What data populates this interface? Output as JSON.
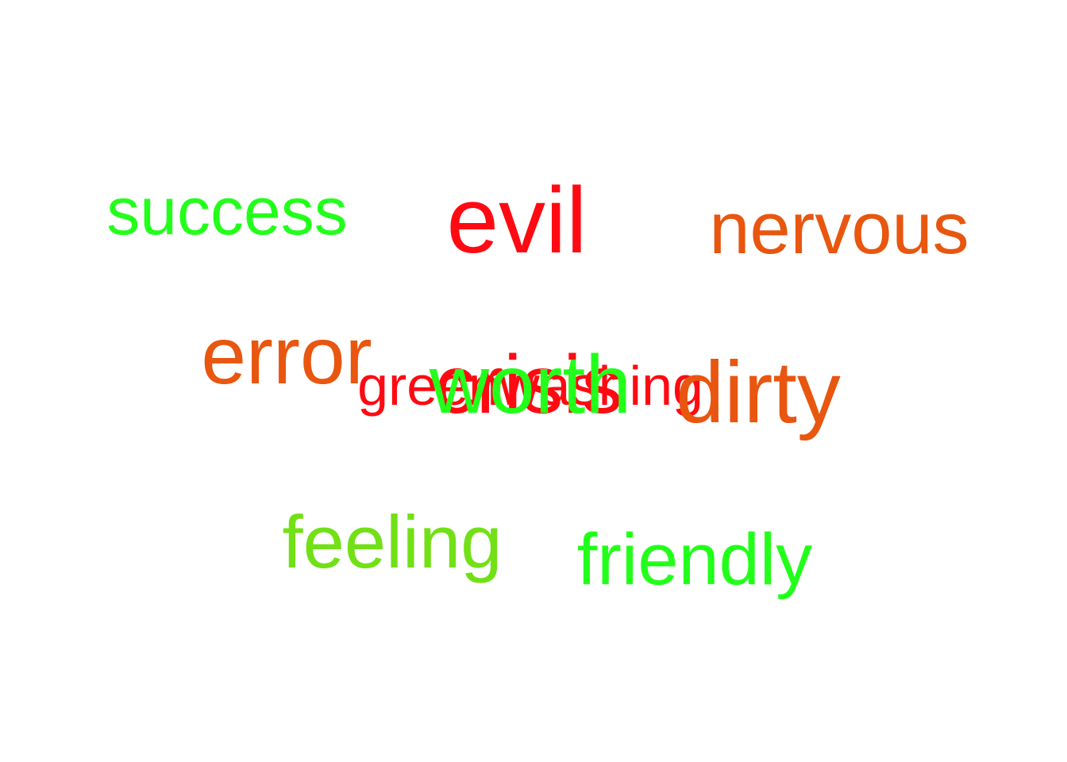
{
  "word_cloud": {
    "words": [
      {
        "text": "success",
        "color": "#22ff1a"
      },
      {
        "text": "evil",
        "color": "#ff0a12"
      },
      {
        "text": "nervous",
        "color": "#e8560f"
      },
      {
        "text": "error",
        "color": "#e8560f"
      },
      {
        "text": "crisis",
        "color": "#ff0a12"
      },
      {
        "text": "greenwashing",
        "color": "#ff0a12"
      },
      {
        "text": "worth",
        "color": "#22ff1a"
      },
      {
        "text": "dirty",
        "color": "#e8560f"
      },
      {
        "text": "feeling",
        "color": "#72e016"
      },
      {
        "text": "friendly",
        "color": "#22ff1a"
      }
    ]
  }
}
